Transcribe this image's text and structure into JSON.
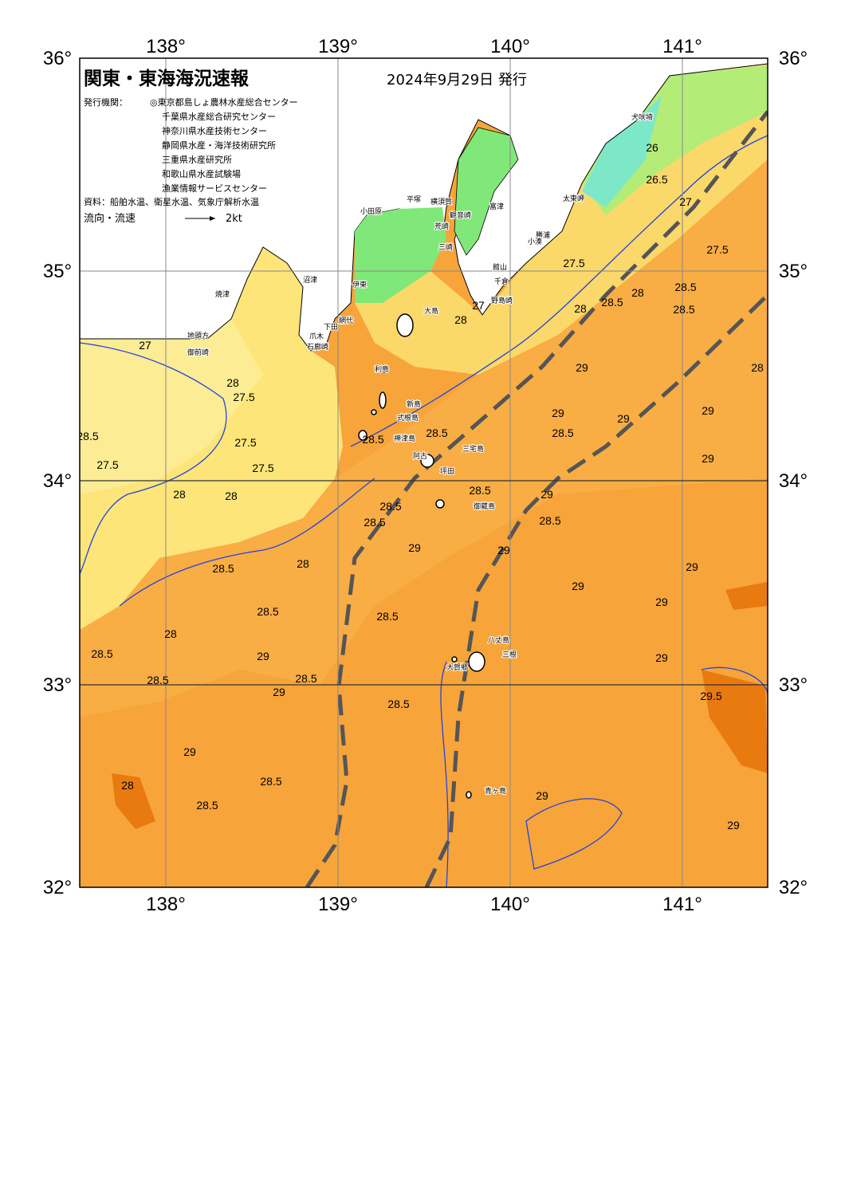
{
  "header": {
    "title": "関東・東海海況速報",
    "date": "2024年9月29日 発行"
  },
  "agencies": {
    "label": "発行機関：",
    "items": [
      "◎東京都島しょ農林水産総合センター",
      "千葉県水産総合研究センター",
      "神奈川県水産技術センター",
      "静岡県水産・海洋技術研究所",
      "三重県水産研究所",
      "和歌山県水産試験場",
      "漁業情報サービスセンター"
    ]
  },
  "source": "資料：船舶水温、衛星水温、気象庁解析水温",
  "legend": {
    "label": "流向・流速",
    "scale": "2kt"
  },
  "axes": {
    "lon_labels": [
      "138°",
      "139°",
      "140°",
      "141°"
    ],
    "lat_labels": [
      "36°",
      "35°",
      "34°",
      "33°",
      "32°"
    ]
  },
  "place_names": [
    "犬吠埼",
    "太東岬",
    "勝浦",
    "小湊",
    "館山",
    "千倉",
    "野島崎",
    "富津",
    "観音崎",
    "横須賀",
    "荒崎",
    "三崎",
    "平塚",
    "小田原",
    "伊東",
    "沼津",
    "網代",
    "下田",
    "爪木",
    "石廊崎",
    "焼津",
    "地頭方",
    "御前崎",
    "大島",
    "利島",
    "新島",
    "式根島",
    "神津島",
    "三宅島",
    "阿古",
    "坪田",
    "御蔵島",
    "八丈島",
    "三根",
    "大賀郷",
    "青ヶ島"
  ],
  "contour_labels": [
    "27",
    "27.5",
    "27",
    "26.5",
    "26",
    "27.5",
    "28",
    "28.5",
    "28",
    "28.5",
    "27",
    "28",
    "27.5",
    "28",
    "27.5",
    "27.5",
    "27.5",
    "28.5",
    "28",
    "28",
    "28.5",
    "28.5",
    "29",
    "29",
    "29",
    "29",
    "28",
    "28.5",
    "29",
    "28.5",
    "28.5",
    "29",
    "29",
    "28.5",
    "28.5",
    "29",
    "28.5",
    "29",
    "28.5",
    "28",
    "28.5",
    "28.5",
    "28",
    "29",
    "29",
    "29.5",
    "28.5",
    "29",
    "28.5",
    "28.5",
    "29",
    "29",
    "28.5",
    "29",
    "28.5",
    "29",
    "28",
    "28.5",
    "29"
  ]
}
